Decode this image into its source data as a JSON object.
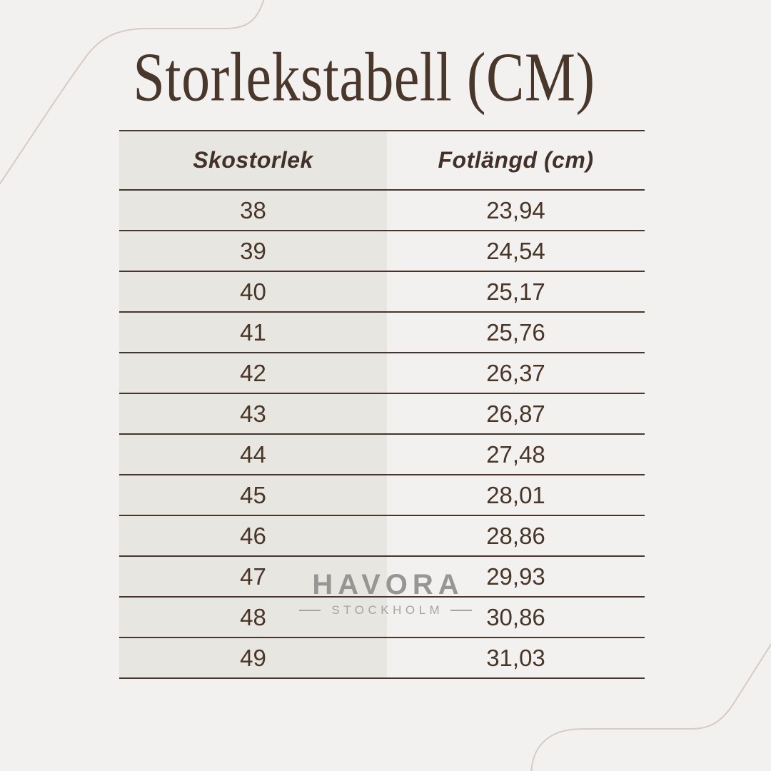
{
  "page": {
    "title": "Storlekstabell (CM)",
    "background_color": "#f2f1ef",
    "left_column_color": "#e8e6e1",
    "line_color": "#46352a",
    "text_color": "#4a372b",
    "curve_color": "#d8cbc4"
  },
  "table": {
    "columns": [
      "Skostorlek",
      "Fotlängd (cm)"
    ],
    "rows": [
      {
        "size": "38",
        "length": "23,94"
      },
      {
        "size": "39",
        "length": "24,54"
      },
      {
        "size": "40",
        "length": "25,17"
      },
      {
        "size": "41",
        "length": "25,76"
      },
      {
        "size": "42",
        "length": "26,37"
      },
      {
        "size": "43",
        "length": "26,87"
      },
      {
        "size": "44",
        "length": "27,48"
      },
      {
        "size": "45",
        "length": "28,01"
      },
      {
        "size": "46",
        "length": "28,86"
      },
      {
        "size": "47",
        "length": "29,93"
      },
      {
        "size": "48",
        "length": "30,86"
      },
      {
        "size": "49",
        "length": "31,03"
      }
    ]
  },
  "watermark": {
    "brand": "HAVORA",
    "sub": "STOCKHOLM",
    "brand_color": "#989694",
    "sub_color": "#a6a3a0"
  },
  "chart_data": {
    "type": "table",
    "title": "Storlekstabell (CM)",
    "columns": [
      "Skostorlek",
      "Fotlängd (cm)"
    ],
    "rows": [
      [
        "38",
        "23,94"
      ],
      [
        "39",
        "24,54"
      ],
      [
        "40",
        "25,17"
      ],
      [
        "41",
        "25,76"
      ],
      [
        "42",
        "26,37"
      ],
      [
        "43",
        "26,87"
      ],
      [
        "44",
        "27,48"
      ],
      [
        "45",
        "28,01"
      ],
      [
        "46",
        "28,86"
      ],
      [
        "47",
        "29,93"
      ],
      [
        "48",
        "30,86"
      ],
      [
        "49",
        "31,03"
      ]
    ]
  }
}
